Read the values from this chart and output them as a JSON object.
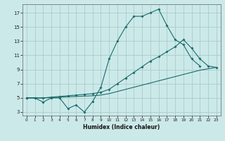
{
  "xlabel": "Humidex (Indice chaleur)",
  "xlim": [
    -0.5,
    23.5
  ],
  "ylim": [
    2.5,
    18.2
  ],
  "xticks": [
    0,
    1,
    2,
    3,
    4,
    5,
    6,
    7,
    8,
    9,
    10,
    11,
    12,
    13,
    14,
    15,
    16,
    17,
    18,
    19,
    20,
    21,
    22,
    23
  ],
  "yticks": [
    3,
    5,
    7,
    9,
    11,
    13,
    15,
    17
  ],
  "bg_color": "#cce9e9",
  "grid_color": "#aacccc",
  "line_color": "#1a6b6b",
  "line1_x": [
    0,
    1,
    2,
    3,
    4,
    5,
    6,
    7,
    8,
    9,
    10,
    11,
    12,
    13,
    14,
    15,
    16,
    17,
    18,
    19,
    20,
    21
  ],
  "line1_y": [
    5.0,
    5.0,
    4.4,
    5.0,
    5.0,
    3.5,
    4.0,
    3.0,
    4.5,
    6.5,
    10.5,
    13.0,
    15.0,
    16.5,
    16.5,
    17.0,
    17.5,
    15.2,
    13.2,
    12.5,
    10.5,
    9.5
  ],
  "line2_x": [
    0,
    1,
    2,
    3,
    4,
    5,
    6,
    7,
    8,
    9,
    10,
    11,
    12,
    13,
    14,
    15,
    16,
    17,
    18,
    19,
    20,
    21,
    22,
    23
  ],
  "line2_y": [
    5.0,
    5.0,
    5.0,
    5.1,
    5.2,
    5.3,
    5.4,
    5.5,
    5.6,
    5.8,
    6.2,
    7.0,
    7.8,
    8.6,
    9.4,
    10.2,
    10.8,
    11.5,
    12.2,
    13.2,
    12.0,
    10.5,
    9.5,
    9.3
  ],
  "line3_x": [
    0,
    1,
    2,
    3,
    4,
    5,
    6,
    7,
    8,
    9,
    10,
    11,
    12,
    13,
    14,
    15,
    16,
    17,
    18,
    19,
    20,
    21,
    22,
    23
  ],
  "line3_y": [
    5.0,
    5.0,
    5.0,
    5.05,
    5.1,
    5.15,
    5.2,
    5.25,
    5.3,
    5.4,
    5.6,
    5.9,
    6.2,
    6.5,
    6.8,
    7.1,
    7.4,
    7.7,
    8.0,
    8.3,
    8.6,
    8.9,
    9.1,
    9.3
  ]
}
